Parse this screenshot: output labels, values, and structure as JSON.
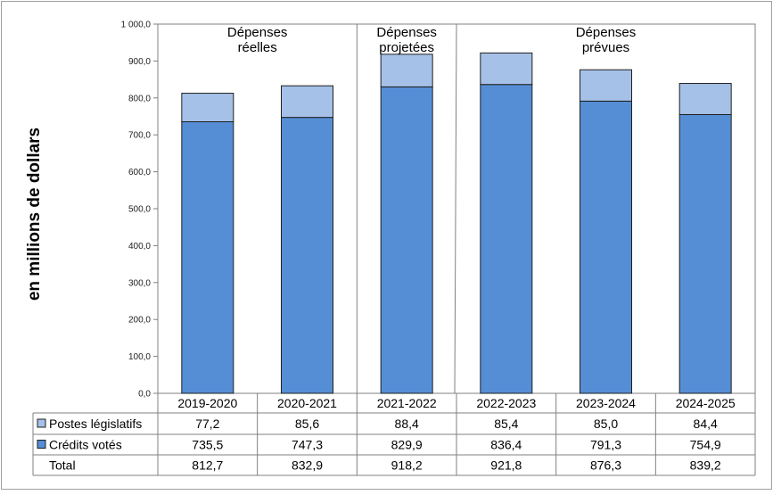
{
  "chart_data": {
    "type": "bar",
    "stacked": true,
    "ylabel": "en millions  de dollars",
    "ylim": [
      0,
      1000
    ],
    "ytick_step": 100,
    "ytick_labels": [
      "0,0",
      "100,0",
      "200,0",
      "300,0",
      "400,0",
      "500,0",
      "600,0",
      "700,0",
      "800,0",
      "900,0",
      "1 000,0"
    ],
    "grid": false,
    "categories": [
      "2019-2020",
      "2020-2021",
      "2021-2022",
      "2022-2023",
      "2023-2024",
      "2024-2025"
    ],
    "series": [
      {
        "name": "Crédits votés",
        "color": "#558ed5",
        "values": [
          735.5,
          747.3,
          829.9,
          836.4,
          791.3,
          754.9
        ],
        "labels": [
          "735,5",
          "747,3",
          "829,9",
          "836,4",
          "791,3",
          "754,9"
        ]
      },
      {
        "name": "Postes législatifs",
        "color": "#a6c1e8",
        "values": [
          77.2,
          85.6,
          88.4,
          85.4,
          85.0,
          84.4
        ],
        "labels": [
          "77,2",
          "85,6",
          "88,4",
          "85,4",
          "85,0",
          "84,4"
        ]
      }
    ],
    "totals": {
      "name": "Total",
      "values": [
        812.7,
        832.9,
        918.2,
        921.8,
        876.3,
        839.2
      ],
      "labels": [
        "812,7",
        "832,9",
        "918,2",
        "921,8",
        "876,3",
        "839,2"
      ]
    },
    "annotations": [
      {
        "lines": [
          "Dépenses",
          "réelles"
        ],
        "span": [
          0,
          1
        ]
      },
      {
        "lines": [
          "Dépenses",
          "projetées"
        ],
        "span": [
          2,
          2
        ]
      },
      {
        "lines": [
          "Dépenses",
          "prévues"
        ],
        "span": [
          3,
          5
        ]
      }
    ]
  }
}
